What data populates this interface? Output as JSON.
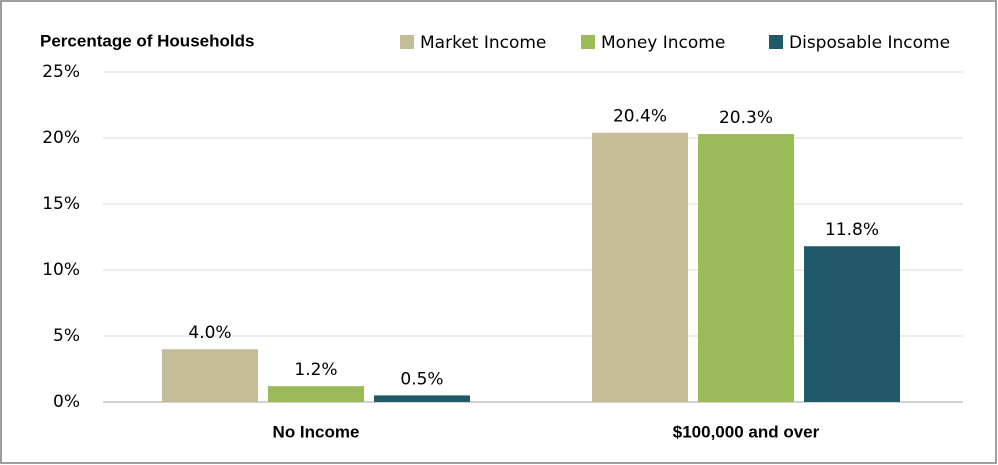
{
  "chart_data": {
    "type": "bar",
    "title": "Percentage of Households",
    "categories": [
      "No Income",
      "$100,000 and over"
    ],
    "series": [
      {
        "name": "Market Income",
        "color": "#c5bd98",
        "values": [
          4.0,
          20.4
        ],
        "value_labels": [
          "4.0%",
          "20.4%"
        ]
      },
      {
        "name": "Money Income",
        "color": "#9bbb59",
        "values": [
          1.2,
          20.3
        ],
        "value_labels": [
          "1.2%",
          "20.3%"
        ]
      },
      {
        "name": "Disposable Income",
        "color": "#215968",
        "values": [
          0.5,
          11.8
        ],
        "value_labels": [
          "0.5%",
          "11.8%"
        ]
      }
    ],
    "ylim": [
      0,
      25
    ],
    "yticks": [
      {
        "value": 0,
        "label": "0%"
      },
      {
        "value": 5,
        "label": "5%"
      },
      {
        "value": 10,
        "label": "10%"
      },
      {
        "value": 15,
        "label": "15%"
      },
      {
        "value": 20,
        "label": "20%"
      },
      {
        "value": 25,
        "label": "25%"
      }
    ],
    "grid": true,
    "legend": "top-right"
  }
}
